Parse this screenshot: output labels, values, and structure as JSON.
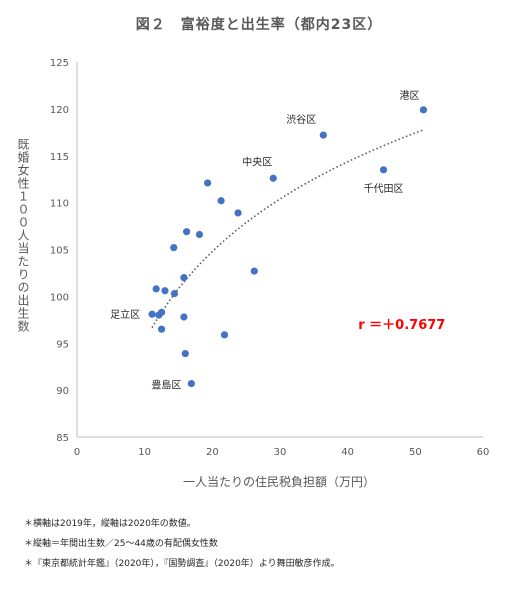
{
  "chart_data": {
    "type": "scatter",
    "title": "図２　富裕度と出生率（都内23区）",
    "xlabel": "一人当たりの住民税負担額（万円）",
    "ylabel": "既婚女性１００人当たりの出生数",
    "xlim": [
      0,
      60
    ],
    "ylim": [
      85,
      125
    ],
    "xticks": [
      0,
      10,
      20,
      30,
      40,
      50,
      60
    ],
    "yticks": [
      85,
      90,
      95,
      100,
      105,
      110,
      115,
      120,
      125
    ],
    "grid": false,
    "marker_color": "#4472C4",
    "trendline": {
      "style": "dotted",
      "color": "#595959"
    },
    "annotation": {
      "text": "r ＝＋0.7677",
      "color": "#FF0000",
      "x": 48,
      "y": 96.5
    },
    "points": [
      {
        "x": 51.2,
        "y": 119.9,
        "label": "港区"
      },
      {
        "x": 36.4,
        "y": 117.2,
        "label": "渋谷区"
      },
      {
        "x": 29.0,
        "y": 112.6,
        "label": "中央区"
      },
      {
        "x": 45.3,
        "y": 113.5,
        "label": "千代田区"
      },
      {
        "x": 19.3,
        "y": 112.1,
        "label": ""
      },
      {
        "x": 21.3,
        "y": 110.2,
        "label": ""
      },
      {
        "x": 23.8,
        "y": 108.9,
        "label": ""
      },
      {
        "x": 16.2,
        "y": 106.9,
        "label": ""
      },
      {
        "x": 18.1,
        "y": 106.6,
        "label": ""
      },
      {
        "x": 14.3,
        "y": 105.2,
        "label": ""
      },
      {
        "x": 26.2,
        "y": 102.7,
        "label": ""
      },
      {
        "x": 15.8,
        "y": 102.0,
        "label": ""
      },
      {
        "x": 11.7,
        "y": 100.8,
        "label": ""
      },
      {
        "x": 13.0,
        "y": 100.6,
        "label": ""
      },
      {
        "x": 14.4,
        "y": 100.3,
        "label": ""
      },
      {
        "x": 11.1,
        "y": 98.1,
        "label": "足立区"
      },
      {
        "x": 12.1,
        "y": 98.0,
        "label": ""
      },
      {
        "x": 12.5,
        "y": 98.3,
        "label": ""
      },
      {
        "x": 15.8,
        "y": 97.8,
        "label": ""
      },
      {
        "x": 12.5,
        "y": 96.5,
        "label": ""
      },
      {
        "x": 21.8,
        "y": 95.9,
        "label": ""
      },
      {
        "x": 16.0,
        "y": 93.9,
        "label": ""
      },
      {
        "x": 16.9,
        "y": 90.7,
        "label": "豊島区"
      }
    ],
    "label_offsets_note": "",
    "notes": [
      "＊横軸は2019年，縦軸は2020年の数値。",
      "＊縦軸＝年間出生数／25～44歳の有配偶女性数",
      "＊『東京都統計年鑑』（2020年），『国勢調査』（2020年）より舞田敏彦作成。"
    ]
  }
}
